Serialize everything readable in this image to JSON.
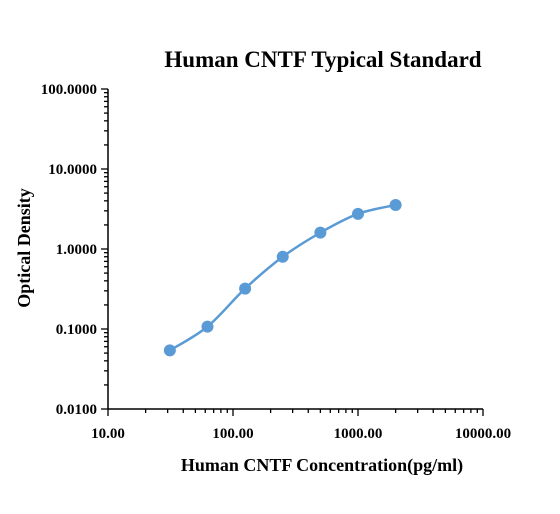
{
  "chart_data": {
    "type": "scatter",
    "title": "Human CNTF Typical Standard",
    "xlabel": "Human CNTF Concentration(pg/ml)",
    "ylabel": "Optical Density",
    "x_scale": "log",
    "y_scale": "log",
    "xlim": [
      10,
      10000
    ],
    "ylim": [
      0.01,
      100
    ],
    "x_ticks": [
      "10.00",
      "100.00",
      "1000.00",
      "10000.00"
    ],
    "y_ticks": [
      "0.0100",
      "0.1000",
      "1.0000",
      "10.0000",
      "100.0000"
    ],
    "grid": false,
    "legend": "none",
    "color": "#5b9bd5",
    "series": [
      {
        "x": [
          31.25,
          62.5,
          125,
          250,
          500,
          1000,
          2000
        ],
        "y": [
          0.054,
          0.107,
          0.32,
          0.8,
          1.6,
          2.75,
          3.55
        ],
        "fit_curve": true
      }
    ]
  }
}
